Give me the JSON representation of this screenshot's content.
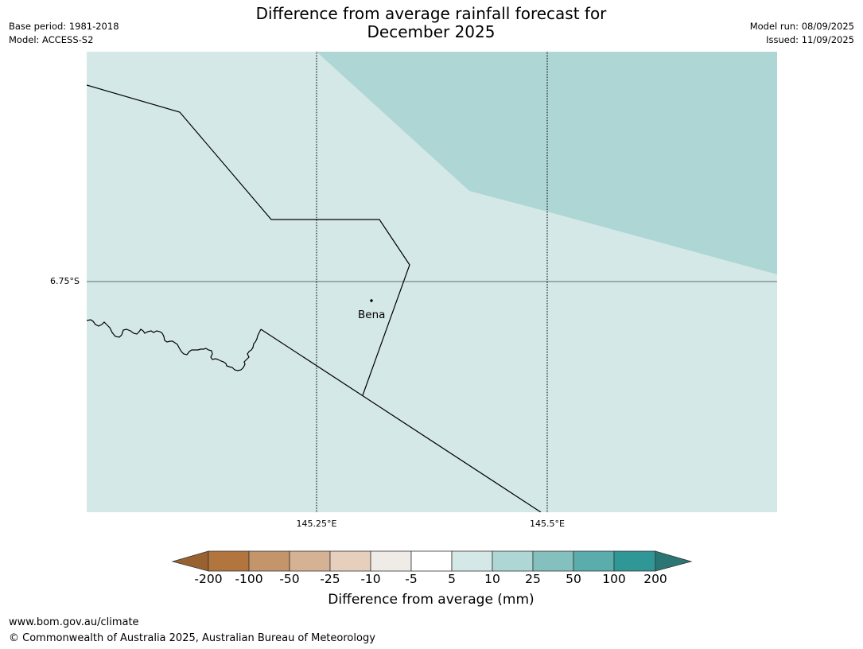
{
  "header": {
    "title_line1": "Difference from average rainfall forecast for",
    "title_line2": "December 2025",
    "base_period": "Base period: 1981-2018",
    "model": "Model: ACCESS-S2",
    "model_run": "Model run: 08/09/2025",
    "issued": "Issued: 11/09/2025"
  },
  "map": {
    "lat_label": "6.75°S",
    "lon_labels": [
      "145.25°E",
      "145.5°E"
    ],
    "place": {
      "name": "Bena"
    },
    "colors": {
      "band_5_10": "#d4e8e7",
      "band_10_25": "#add6d5",
      "border": "#000000",
      "gridline": "#000000"
    }
  },
  "colorbar": {
    "title": "Difference from average (mm)",
    "labels": [
      "-200",
      "-100",
      "-50",
      "-25",
      "-10",
      "-5",
      "5",
      "10",
      "25",
      "50",
      "100",
      "200"
    ],
    "colors": [
      "#9a6130",
      "#b2753e",
      "#c4956a",
      "#d4b293",
      "#e6d0bd",
      "#efebe7",
      "#ffffff",
      "#d4e8e7",
      "#add6d5",
      "#84c1be",
      "#5aadac",
      "#2f9795",
      "#2b7675"
    ]
  },
  "footer": {
    "url": "www.bom.gov.au/climate",
    "copyright": "© Commonwealth of Australia 2025, Australian Bureau of Meteorology"
  }
}
